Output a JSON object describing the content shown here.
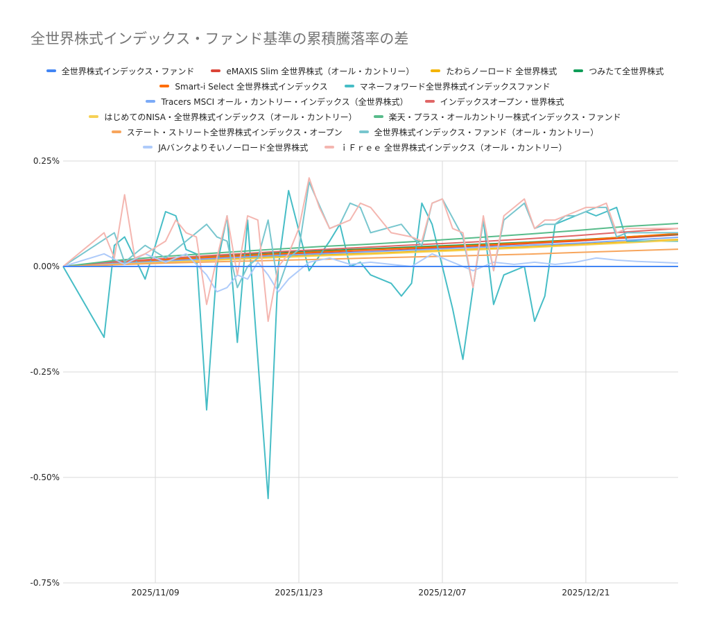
{
  "chart_data": {
    "type": "line",
    "title": "全世界株式インデックス・ファンド基準の累積騰落率の差",
    "xlabel": "",
    "ylabel": "",
    "ylim": [
      -0.75,
      0.25
    ],
    "yticks": [
      "0.25%",
      "0.00%",
      "-0.25%",
      "-0.50%",
      "-0.75%"
    ],
    "ytick_values": [
      0.25,
      0,
      -0.25,
      -0.5,
      -0.75
    ],
    "xlim": [
      0,
      60
    ],
    "xticks": [
      "2025/11/09",
      "2025/11/23",
      "2025/12/07",
      "2025/12/21"
    ],
    "xtick_values": [
      9,
      23,
      37,
      51
    ],
    "grid": true,
    "legend_position": "top",
    "series": [
      {
        "name": "全世界株式インデックス・ファンド",
        "color": "#4285f4",
        "x": [
          0,
          60
        ],
        "y": [
          0,
          0
        ]
      },
      {
        "name": "eMAXIS Slim 全世界株式（オール・カントリー）",
        "color": "#db4437",
        "x": [
          0,
          5,
          10,
          15,
          20,
          25,
          30,
          35,
          40,
          45,
          50,
          55,
          60
        ],
        "y": [
          0,
          0.008,
          0.014,
          0.02,
          0.026,
          0.032,
          0.036,
          0.042,
          0.048,
          0.054,
          0.06,
          0.068,
          0.075
        ]
      },
      {
        "name": "たわらノーロード 全世界株式",
        "color": "#f4b400",
        "x": [
          0,
          5,
          10,
          15,
          20,
          25,
          30,
          35,
          40,
          45,
          50,
          55,
          60
        ],
        "y": [
          0,
          0.006,
          0.011,
          0.016,
          0.022,
          0.027,
          0.031,
          0.036,
          0.041,
          0.046,
          0.052,
          0.058,
          0.064
        ]
      },
      {
        "name": "つみたて全世界株式",
        "color": "#0f9d58",
        "x": [
          0,
          5,
          10,
          15,
          20,
          25,
          30,
          35,
          40,
          45,
          50,
          55,
          60
        ],
        "y": [
          0,
          0.01,
          0.017,
          0.025,
          0.031,
          0.037,
          0.042,
          0.047,
          0.052,
          0.057,
          0.063,
          0.07,
          0.077
        ]
      },
      {
        "name": "Smart-i Select 全世界株式インデックス",
        "color": "#ff6d01",
        "x": [
          0,
          5,
          10,
          15,
          20,
          25,
          30,
          35,
          40,
          45,
          50,
          55,
          60
        ],
        "y": [
          0,
          0.009,
          0.016,
          0.023,
          0.029,
          0.035,
          0.04,
          0.045,
          0.05,
          0.056,
          0.062,
          0.07,
          0.078
        ]
      },
      {
        "name": "マネーフォワード全世界株式インデックスファンド",
        "color": "#46bdc6",
        "x": [
          0,
          4,
          5,
          6,
          8,
          10,
          11,
          12,
          13,
          14,
          15,
          16,
          17,
          18,
          20,
          21,
          22,
          24,
          26,
          27,
          28,
          29,
          30,
          32,
          33,
          34,
          35,
          36,
          37,
          38,
          39,
          40,
          41,
          42,
          43,
          44,
          45,
          46,
          47,
          48,
          49,
          50,
          51,
          52,
          53,
          54,
          55,
          56,
          57,
          58,
          59,
          60
        ],
        "y": [
          0,
          -0.168,
          0.05,
          0.07,
          -0.03,
          0.13,
          0.12,
          0.04,
          0.03,
          -0.34,
          0.0,
          0.12,
          -0.18,
          0.11,
          -0.55,
          0.0,
          0.18,
          -0.01,
          0.06,
          0.1,
          0.0,
          0.01,
          -0.02,
          -0.04,
          -0.07,
          -0.04,
          0.15,
          0.1,
          0.0,
          -0.1,
          -0.22,
          -0.05,
          0.11,
          -0.09,
          -0.02,
          -0.01,
          0.0,
          -0.13,
          -0.07,
          0.1,
          0.11,
          0.12,
          0.13,
          0.12,
          0.13,
          0.14,
          0.06,
          0.06,
          0.06,
          0.06,
          0.06,
          0.06
        ]
      },
      {
        "name": "Tracers MSCI オール・カントリー・インデックス（全世界株式）",
        "color": "#7baaf7",
        "x": [
          0,
          5,
          10,
          15,
          20,
          25,
          30,
          35,
          40,
          45,
          50,
          55,
          60
        ],
        "y": [
          0,
          0.007,
          0.013,
          0.019,
          0.025,
          0.03,
          0.035,
          0.04,
          0.045,
          0.05,
          0.055,
          0.062,
          0.069
        ]
      },
      {
        "name": "インデックスオープン・世界株式",
        "color": "#e06666",
        "x": [
          0,
          5,
          10,
          15,
          20,
          25,
          30,
          35,
          40,
          45,
          50,
          55,
          60
        ],
        "y": [
          0,
          0.011,
          0.019,
          0.027,
          0.034,
          0.04,
          0.046,
          0.052,
          0.058,
          0.065,
          0.073,
          0.082,
          0.09
        ]
      },
      {
        "name": "はじめてのNISA・全世界株式インデックス（オール・カントリー）",
        "color": "#f6d155",
        "x": [
          0,
          5,
          10,
          15,
          20,
          25,
          30,
          35,
          40,
          45,
          50,
          55,
          60
        ],
        "y": [
          0,
          0.005,
          0.01,
          0.015,
          0.02,
          0.025,
          0.029,
          0.034,
          0.039,
          0.044,
          0.05,
          0.056,
          0.062
        ]
      },
      {
        "name": "楽天・プラス・オールカントリー株式インデックス・ファンド",
        "color": "#57bb8a",
        "x": [
          0,
          5,
          10,
          15,
          20,
          25,
          30,
          35,
          40,
          45,
          50,
          55,
          60
        ],
        "y": [
          0,
          0.014,
          0.024,
          0.032,
          0.04,
          0.047,
          0.053,
          0.06,
          0.068,
          0.076,
          0.085,
          0.095,
          0.102
        ]
      },
      {
        "name": "ステート・ストリート全世界株式インデックス・オープン",
        "color": "#f7a55c",
        "x": [
          0,
          5,
          10,
          15,
          20,
          25,
          30,
          35,
          40,
          45,
          50,
          55,
          60
        ],
        "y": [
          0,
          0.004,
          0.008,
          0.011,
          0.014,
          0.017,
          0.02,
          0.023,
          0.026,
          0.029,
          0.033,
          0.037,
          0.041
        ]
      },
      {
        "name": "全世界株式インデックス・ファンド（オール・カントリー）",
        "color": "#78c6ce",
        "x": [
          0,
          5,
          6,
          8,
          10,
          12,
          14,
          15,
          16,
          17,
          18,
          19,
          20,
          21,
          22,
          23,
          24,
          26,
          27,
          28,
          29,
          30,
          33,
          34,
          35,
          36,
          37,
          39,
          40,
          41,
          42,
          43,
          44,
          45,
          46,
          47,
          48,
          49,
          50,
          51,
          52,
          53,
          54,
          55,
          56,
          57,
          58,
          59,
          60
        ],
        "y": [
          0,
          0.08,
          0.01,
          0.05,
          0.02,
          0.06,
          0.1,
          0.07,
          0.06,
          -0.05,
          0.0,
          0.02,
          0.11,
          -0.05,
          0.02,
          0.04,
          0.2,
          0.09,
          0.1,
          0.15,
          0.14,
          0.08,
          0.1,
          0.07,
          0.05,
          0.15,
          0.16,
          0.07,
          -0.05,
          0.11,
          -0.01,
          0.11,
          0.13,
          0.15,
          0.09,
          0.1,
          0.1,
          0.12,
          0.12,
          0.13,
          0.14,
          0.14,
          0.07,
          0.08,
          0.08,
          0.08,
          0.08,
          0.08,
          0.08
        ]
      },
      {
        "name": "JAバンクよりそいノーロード全世界株式",
        "color": "#aecbfa",
        "x": [
          0,
          4,
          6,
          8,
          10,
          12,
          14,
          15,
          16,
          17,
          18,
          19,
          20,
          21,
          22,
          24,
          26,
          28,
          30,
          32,
          34,
          36,
          38,
          40,
          42,
          44,
          46,
          48,
          50,
          52,
          54,
          56,
          58,
          60
        ],
        "y": [
          0,
          0.03,
          0.005,
          0.03,
          0.01,
          0.03,
          -0.02,
          -0.06,
          -0.05,
          -0.02,
          -0.03,
          0.01,
          -0.02,
          -0.06,
          -0.03,
          0.01,
          0.02,
          0.005,
          0.01,
          0.005,
          0.0,
          0.03,
          0.01,
          -0.01,
          0.01,
          0.005,
          0.01,
          0.005,
          0.01,
          0.02,
          0.015,
          0.012,
          0.01,
          0.008
        ]
      },
      {
        "name": "ｉＦｒｅｅ 全世界株式インデックス（オール・カントリー）",
        "color": "#f4b6b0",
        "x": [
          0,
          4,
          5,
          6,
          7,
          8,
          10,
          11,
          12,
          13,
          14,
          15,
          16,
          17,
          18,
          19,
          20,
          21,
          22,
          23,
          24,
          25,
          26,
          27,
          28,
          29,
          30,
          32,
          34,
          35,
          36,
          37,
          38,
          39,
          40,
          41,
          42,
          43,
          44,
          45,
          46,
          47,
          48,
          49,
          50,
          51,
          52,
          53,
          54,
          55,
          56,
          57,
          58,
          59,
          60
        ],
        "y": [
          0,
          0.08,
          0.02,
          0.17,
          0.02,
          0.03,
          0.06,
          0.11,
          0.08,
          0.07,
          -0.09,
          0.02,
          0.12,
          -0.02,
          0.12,
          0.11,
          -0.13,
          0.0,
          0.03,
          0.09,
          0.21,
          0.14,
          0.09,
          0.1,
          0.11,
          0.15,
          0.14,
          0.08,
          0.07,
          0.06,
          0.15,
          0.16,
          0.09,
          0.08,
          -0.05,
          0.12,
          -0.01,
          0.12,
          0.14,
          0.16,
          0.09,
          0.11,
          0.11,
          0.12,
          0.13,
          0.14,
          0.14,
          0.15,
          0.08,
          0.09,
          0.09,
          0.09,
          0.09,
          0.09,
          0.09
        ]
      }
    ]
  }
}
